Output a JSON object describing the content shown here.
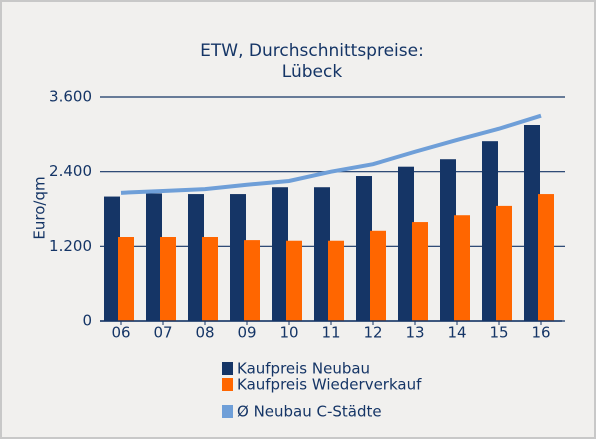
{
  "chart_data": {
    "type": "bar",
    "title": [
      "ETW, Durchschnittspreise:",
      "Lübeck"
    ],
    "y_label": "Euro/qm",
    "categories": [
      "06",
      "07",
      "08",
      "09",
      "10",
      "11",
      "12",
      "13",
      "14",
      "15",
      "16"
    ],
    "series": [
      {
        "name": "Kaufpreis Neubau",
        "color": "#153566",
        "type": "bar",
        "values": [
          2000,
          2050,
          2040,
          2040,
          2150,
          2150,
          2330,
          2480,
          2600,
          2890,
          3150
        ]
      },
      {
        "name": "Kaufpreis Wiederverkauf",
        "color": "#ff6600",
        "type": "bar",
        "values": [
          1350,
          1350,
          1350,
          1300,
          1290,
          1290,
          1450,
          1590,
          1700,
          1850,
          2040
        ]
      },
      {
        "name": "Ø Neubau C-Städte",
        "color": "#6f9fd8",
        "type": "line",
        "values": [
          2060,
          2090,
          2120,
          2190,
          2250,
          2400,
          2520,
          2720,
          2910,
          3090,
          3300
        ]
      }
    ],
    "ylim": [
      0,
      3600
    ],
    "yticks": [
      0,
      {
        "value": 1200,
        "label": "1.200"
      },
      {
        "value": 2400,
        "label": "2.400"
      },
      {
        "value": 3600,
        "label": "3.600"
      }
    ],
    "grid": true
  }
}
